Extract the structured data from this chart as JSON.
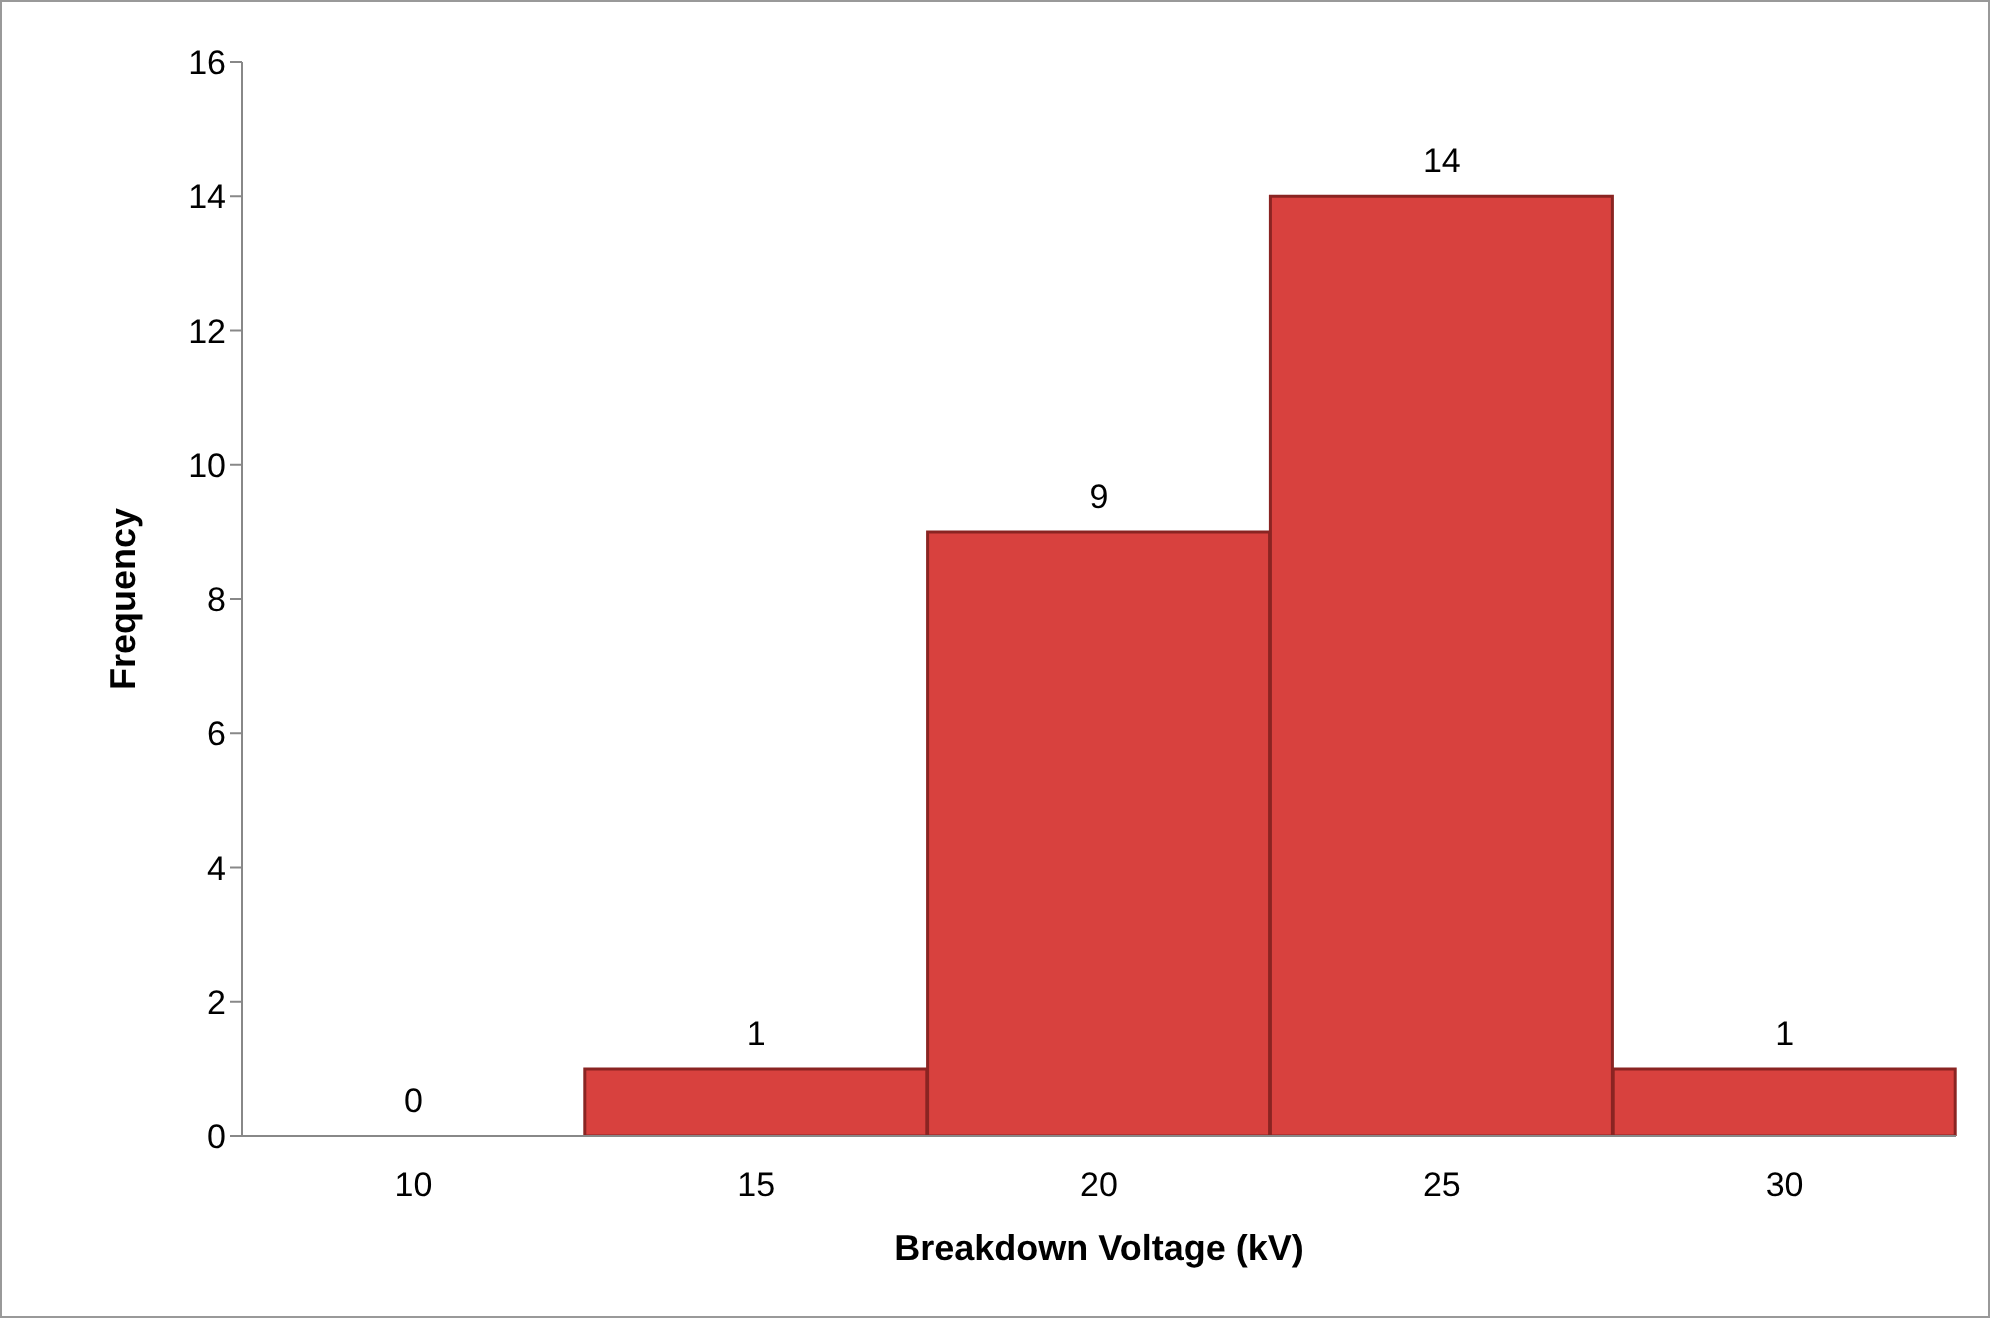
{
  "chart_data": {
    "type": "bar",
    "xlabel": "Breakdown Voltage (kV)",
    "ylabel": "Frequency",
    "categories": [
      "10",
      "15",
      "20",
      "25",
      "30"
    ],
    "values": [
      0,
      1,
      9,
      14,
      1
    ],
    "color": "#d8413e",
    "ylim": [
      0,
      16
    ],
    "yticks": [
      0,
      2,
      4,
      6,
      8,
      10,
      12,
      14,
      16
    ],
    "data_labels": true
  }
}
